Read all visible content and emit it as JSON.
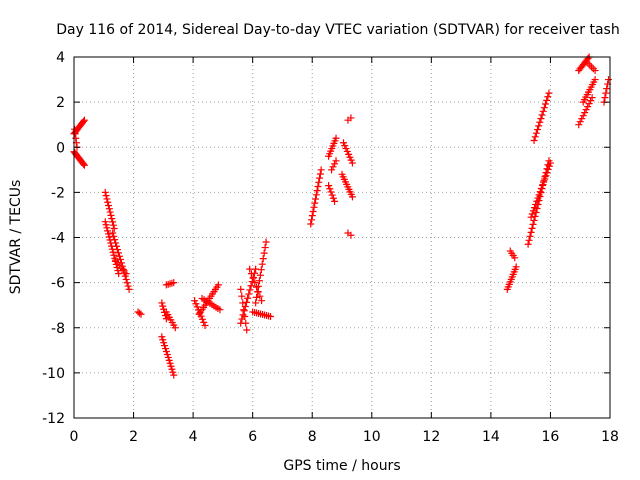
{
  "chart_data": {
    "type": "scatter",
    "title": "Day 116 of 2014, Sidereal Day-to-day VTEC variation (SDTVAR) for receiver tash",
    "xlabel": "GPS time / hours",
    "ylabel": "SDTVAR / TECUs",
    "xlim": [
      0,
      18
    ],
    "ylim": [
      -12,
      4
    ],
    "xticks": [
      0,
      2,
      4,
      6,
      8,
      10,
      12,
      14,
      16,
      18
    ],
    "yticks": [
      -12,
      -10,
      -8,
      -6,
      -4,
      -2,
      0,
      2,
      4
    ],
    "grid": true,
    "marker": "+",
    "color": "#ff0000",
    "series": [
      {
        "name": "SDTVAR",
        "segments": [
          {
            "x0": 0.0,
            "x1": 0.35,
            "y0": 0.6,
            "y1": 1.2,
            "n": 12
          },
          {
            "x0": 0.0,
            "x1": 0.35,
            "y0": -0.2,
            "y1": -0.8,
            "n": 14
          },
          {
            "x0": 0.02,
            "x1": 0.1,
            "y0": 0.8,
            "y1": 0.0,
            "n": 5
          },
          {
            "x0": 1.05,
            "x1": 1.35,
            "y0": -2.0,
            "y1": -3.6,
            "n": 12
          },
          {
            "x0": 1.05,
            "x1": 1.5,
            "y0": -3.3,
            "y1": -5.6,
            "n": 18
          },
          {
            "x0": 1.3,
            "x1": 1.85,
            "y0": -3.8,
            "y1": -6.3,
            "n": 18
          },
          {
            "x0": 1.4,
            "x1": 1.75,
            "y0": -5.0,
            "y1": -5.6,
            "n": 6
          },
          {
            "x0": 2.15,
            "x1": 2.25,
            "y0": -7.3,
            "y1": -7.4,
            "n": 3
          },
          {
            "x0": 2.95,
            "x1": 3.35,
            "y0": -8.4,
            "y1": -10.1,
            "n": 14
          },
          {
            "x0": 2.95,
            "x1": 3.1,
            "y0": -6.9,
            "y1": -7.6,
            "n": 6
          },
          {
            "x0": 3.1,
            "x1": 3.35,
            "y0": -6.1,
            "y1": -6.0,
            "n": 5
          },
          {
            "x0": 3.1,
            "x1": 3.4,
            "y0": -7.3,
            "y1": -8.0,
            "n": 7
          },
          {
            "x0": 4.05,
            "x1": 4.4,
            "y0": -6.8,
            "y1": -7.9,
            "n": 9
          },
          {
            "x0": 4.2,
            "x1": 4.85,
            "y0": -7.4,
            "y1": -6.1,
            "n": 14
          },
          {
            "x0": 4.3,
            "x1": 4.9,
            "y0": -6.7,
            "y1": -7.2,
            "n": 10
          },
          {
            "x0": 5.6,
            "x1": 6.1,
            "y0": -7.8,
            "y1": -5.4,
            "n": 14
          },
          {
            "x0": 5.6,
            "x1": 5.8,
            "y0": -6.3,
            "y1": -8.1,
            "n": 7
          },
          {
            "x0": 6.1,
            "x1": 6.45,
            "y0": -6.9,
            "y1": -4.2,
            "n": 12
          },
          {
            "x0": 6.0,
            "x1": 6.6,
            "y0": -7.3,
            "y1": -7.5,
            "n": 10
          },
          {
            "x0": 5.9,
            "x1": 6.3,
            "y0": -5.4,
            "y1": -6.8,
            "n": 8
          },
          {
            "x0": 7.95,
            "x1": 8.3,
            "y0": -3.4,
            "y1": -1.0,
            "n": 14
          },
          {
            "x0": 8.55,
            "x1": 8.8,
            "y0": -0.4,
            "y1": 0.4,
            "n": 8
          },
          {
            "x0": 8.55,
            "x1": 8.75,
            "y0": -1.7,
            "y1": -2.4,
            "n": 6
          },
          {
            "x0": 8.65,
            "x1": 8.8,
            "y0": -1.0,
            "y1": -0.6,
            "n": 4
          },
          {
            "x0": 9.0,
            "x1": 9.35,
            "y0": -1.2,
            "y1": -2.2,
            "n": 10
          },
          {
            "x0": 9.05,
            "x1": 9.35,
            "y0": 0.2,
            "y1": -0.7,
            "n": 8
          },
          {
            "x0": 9.2,
            "x1": 9.3,
            "y0": 1.2,
            "y1": 1.3,
            "n": 2
          },
          {
            "x0": 9.2,
            "x1": 9.3,
            "y0": -3.8,
            "y1": -3.9,
            "n": 2
          },
          {
            "x0": 14.55,
            "x1": 14.85,
            "y0": -6.3,
            "y1": -5.3,
            "n": 10
          },
          {
            "x0": 14.65,
            "x1": 14.8,
            "y0": -4.6,
            "y1": -4.9,
            "n": 4
          },
          {
            "x0": 15.25,
            "x1": 15.95,
            "y0": -4.3,
            "y1": -0.6,
            "n": 22
          },
          {
            "x0": 15.35,
            "x1": 16.0,
            "y0": -3.1,
            "y1": -0.7,
            "n": 18
          },
          {
            "x0": 15.45,
            "x1": 15.95,
            "y0": 0.3,
            "y1": 2.4,
            "n": 14
          },
          {
            "x0": 16.95,
            "x1": 17.3,
            "y0": 3.4,
            "y1": 4.0,
            "n": 10
          },
          {
            "x0": 17.2,
            "x1": 17.5,
            "y0": 3.8,
            "y1": 3.4,
            "n": 6
          },
          {
            "x0": 16.95,
            "x1": 17.4,
            "y0": 1.0,
            "y1": 2.2,
            "n": 10
          },
          {
            "x0": 17.1,
            "x1": 17.5,
            "y0": 2.0,
            "y1": 3.0,
            "n": 10
          },
          {
            "x0": 17.8,
            "x1": 17.95,
            "y0": 2.0,
            "y1": 3.0,
            "n": 6
          }
        ]
      }
    ]
  }
}
